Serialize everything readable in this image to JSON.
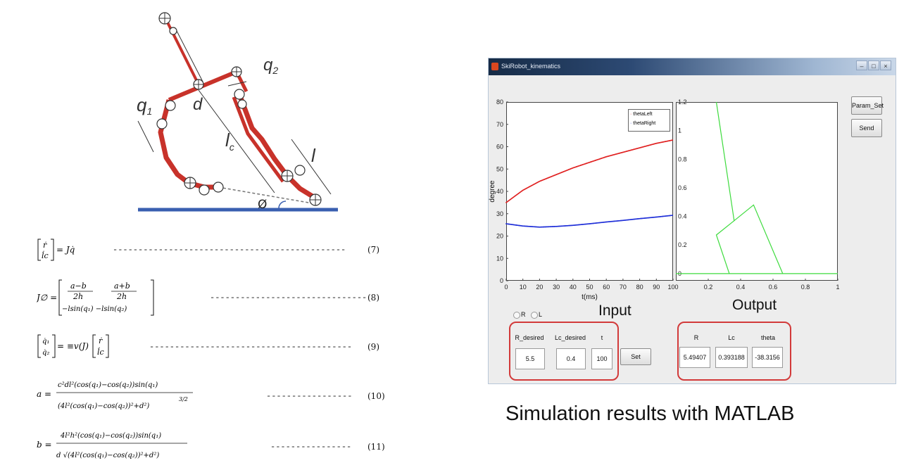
{
  "diagram": {
    "labels": {
      "q1": "q",
      "q1_sub": "1",
      "q2": "q",
      "q2_sub": "2",
      "d": "d",
      "lc": "l",
      "lc_sub": "c",
      "l": "l",
      "phi": "Ø"
    },
    "colors": {
      "robot": "#d83a2c",
      "ground": "#3a5fb0",
      "leg": "#c8322a"
    }
  },
  "equations": [
    {
      "lhs": "[ ṙ ; l̇c ] = Jq̇",
      "num": "(7)"
    },
    {
      "lhs": "J∅ = [ (a−b)/2h   (a+b)/2h ; −lsin(q₁)  −lsin(q₂) ]",
      "num": "(8)"
    },
    {
      "lhs": "[ q̇₁ ; q̇₂ ] = ≡v(J) [ ṙ ; l̇c ]",
      "num": "(9)"
    },
    {
      "lhs": "a = c²dl²(cos(q₁) − cos(q₂))sin(q₁) / (4l²(cos(q₁) − cos(q₂))² + d²)^(3/2)",
      "num": "(10)"
    },
    {
      "lhs": "b = 4l²h²(cos(q₁) − cos(q₂))sin(q₁) / d√(4l²(cos(q₁) − cos(q₂))² + d²)",
      "num": "(11)"
    }
  ],
  "matlab": {
    "window_title": "SkiRobot_kinematics",
    "buttons": {
      "param_set": "Param_Set",
      "send": "Send",
      "set": "Set"
    },
    "radios": {
      "r": "R",
      "l": "L"
    },
    "input_caption": "Input",
    "output_caption": "Output",
    "inputs": [
      {
        "label": "R_desired",
        "value": "5.5"
      },
      {
        "label": "Lc_desired",
        "value": "0.4"
      },
      {
        "label": "t",
        "value": "100"
      }
    ],
    "outputs": [
      {
        "label": "R",
        "value": "5.49407"
      },
      {
        "label": "Lc",
        "value": "0.393188"
      },
      {
        "label": "theta",
        "value": "-38.3156"
      }
    ],
    "colors": {
      "series_left": "#e02020",
      "series_right": "#1f2fd8",
      "output_line": "#3ddb3d",
      "highlight": "#d23a3a"
    }
  },
  "chart_data": [
    {
      "type": "scatter",
      "xlabel": "t(ms)",
      "ylabel": "degree",
      "xlim": [
        0,
        100
      ],
      "ylim": [
        0,
        80
      ],
      "x_ticks": [
        "0",
        "10",
        "20",
        "30",
        "40",
        "50",
        "60",
        "70",
        "80",
        "90",
        "100"
      ],
      "y_ticks": [
        "0",
        "10",
        "20",
        "30",
        "40",
        "50",
        "60",
        "70",
        "80"
      ],
      "legend": "top-right",
      "series": [
        {
          "name": "thetaLeft",
          "color": "#e02020",
          "x": [
            0,
            10,
            20,
            30,
            40,
            50,
            60,
            70,
            80,
            90,
            100
          ],
          "y": [
            35,
            40.5,
            44.5,
            47.5,
            50.5,
            53,
            55.5,
            57.5,
            59.5,
            61.5,
            63
          ]
        },
        {
          "name": "thetaRight",
          "color": "#1f2fd8",
          "x": [
            0,
            10,
            20,
            30,
            40,
            50,
            60,
            70,
            80,
            90,
            100
          ],
          "y": [
            25.5,
            24.5,
            24,
            24.3,
            24.8,
            25.5,
            26.3,
            27,
            27.8,
            28.5,
            29.3
          ]
        }
      ]
    },
    {
      "type": "line",
      "xlim": [
        0,
        1
      ],
      "ylim": [
        -0.05,
        1.2
      ],
      "x_ticks": [
        "0.2",
        "0.4",
        "0.6",
        "0.8",
        "1"
      ],
      "y_ticks": [
        "0",
        "0.2",
        "0.4",
        "0.6",
        "0.8",
        "1",
        "1.2"
      ],
      "series": [
        {
          "color": "#3ddb3d",
          "x": [
            0,
            1
          ],
          "y": [
            0,
            0
          ]
        },
        {
          "color": "#3ddb3d",
          "x": [
            0.25,
            0.36,
            0.48,
            0.66
          ],
          "y": [
            1.2,
            0.37,
            0.48,
            0
          ]
        },
        {
          "color": "#3ddb3d",
          "x": [
            0.33,
            0.25,
            0.36
          ],
          "y": [
            0,
            0.27,
            0.37
          ]
        }
      ]
    }
  ],
  "caption": "Simulation results with MATLAB"
}
